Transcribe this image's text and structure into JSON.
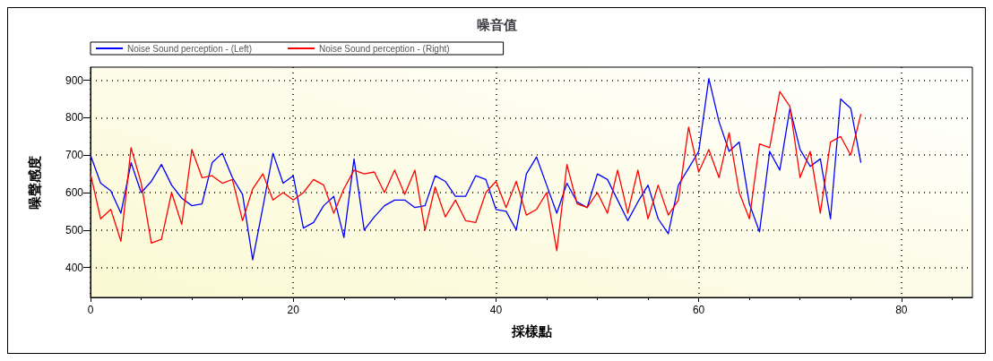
{
  "chart_data": {
    "type": "line",
    "title": "噪音值",
    "xlabel": "採樣點",
    "ylabel": "噪聲感度",
    "x": [
      0,
      1,
      2,
      3,
      4,
      5,
      6,
      7,
      8,
      9,
      10,
      11,
      12,
      13,
      14,
      15,
      16,
      17,
      18,
      19,
      20,
      21,
      22,
      23,
      24,
      25,
      26,
      27,
      28,
      29,
      30,
      31,
      32,
      33,
      34,
      35,
      36,
      37,
      38,
      39,
      40,
      41,
      42,
      43,
      44,
      45,
      46,
      47,
      48,
      49,
      50,
      51,
      52,
      53,
      54,
      55,
      56,
      57,
      58,
      59,
      60,
      61,
      62,
      63,
      64,
      65,
      66,
      67,
      68,
      69,
      70,
      71,
      72,
      73,
      74,
      75,
      76
    ],
    "series": [
      {
        "name": "Noise Sound perception - (Left)",
        "color": "#0000ff",
        "values": [
          700,
          625,
          605,
          545,
          680,
          600,
          630,
          675,
          620,
          585,
          565,
          570,
          680,
          705,
          640,
          595,
          420,
          560,
          705,
          625,
          645,
          505,
          520,
          565,
          590,
          480,
          690,
          500,
          535,
          565,
          580,
          580,
          560,
          565,
          645,
          630,
          590,
          590,
          645,
          635,
          555,
          550,
          500,
          650,
          695,
          620,
          545,
          625,
          575,
          560,
          650,
          635,
          580,
          525,
          575,
          620,
          530,
          490,
          620,
          665,
          710,
          905,
          790,
          710,
          735,
          570,
          495,
          710,
          660,
          825,
          715,
          670,
          690,
          530,
          850,
          825,
          680
        ]
      },
      {
        "name": "Noise Sound perception - (Right)",
        "color": "#ff0000",
        "values": [
          650,
          530,
          555,
          470,
          720,
          625,
          465,
          475,
          600,
          515,
          715,
          640,
          645,
          625,
          635,
          525,
          610,
          650,
          580,
          600,
          580,
          600,
          635,
          620,
          545,
          610,
          660,
          650,
          655,
          600,
          660,
          595,
          660,
          500,
          615,
          535,
          580,
          525,
          520,
          600,
          630,
          560,
          630,
          540,
          555,
          600,
          445,
          675,
          570,
          560,
          600,
          545,
          660,
          545,
          660,
          530,
          620,
          540,
          580,
          775,
          655,
          715,
          640,
          760,
          600,
          530,
          730,
          720,
          870,
          830,
          640,
          710,
          545,
          735,
          750,
          700,
          810
        ]
      }
    ],
    "xlim": [
      0,
      87
    ],
    "xticks": [
      0,
      20,
      40,
      60,
      80
    ],
    "ylim": [
      320,
      935
    ],
    "yticks": [
      400,
      500,
      600,
      700,
      800,
      900
    ],
    "grid": true,
    "legend": "top left",
    "marker": "none",
    "line_style": "solid"
  }
}
